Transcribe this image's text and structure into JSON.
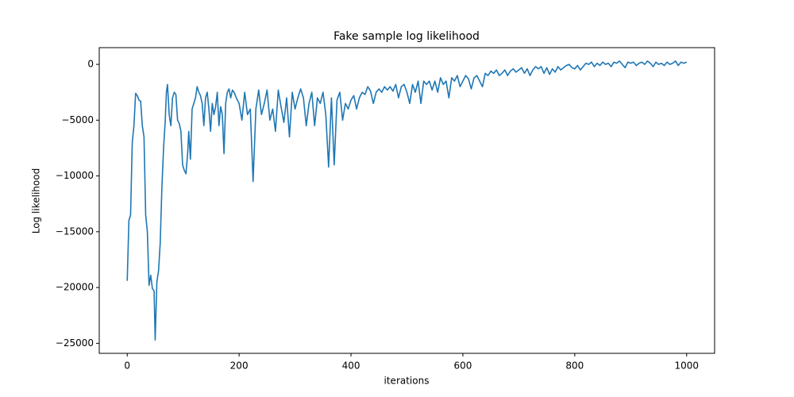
{
  "chart_data": {
    "type": "line",
    "title": "Fake sample log likelihood",
    "x_label": "iterations",
    "y_label": "Log likelihood",
    "xlim": [
      -50,
      1050
    ],
    "ylim": [
      -25900,
      1500
    ],
    "xticks": [
      0,
      200,
      400,
      600,
      800,
      1000
    ],
    "yticks": [
      {
        "value": -25000,
        "label": "−25000"
      },
      {
        "value": -20000,
        "label": "−20000"
      },
      {
        "value": -15000,
        "label": "−15000"
      },
      {
        "value": -10000,
        "label": "−10000"
      },
      {
        "value": -5000,
        "label": "−5000"
      },
      0
    ],
    "grid": false,
    "x": [
      0,
      3,
      6,
      9,
      12,
      15,
      18,
      21,
      24,
      27,
      30,
      33,
      36,
      39,
      42,
      45,
      48,
      50,
      53,
      56,
      59,
      62,
      65,
      68,
      70,
      72,
      75,
      78,
      81,
      84,
      87,
      90,
      93,
      96,
      99,
      102,
      105,
      108,
      110,
      113,
      116,
      119,
      122,
      125,
      128,
      131,
      134,
      137,
      140,
      143,
      146,
      149,
      152,
      155,
      158,
      161,
      164,
      167,
      170,
      173,
      176,
      179,
      182,
      185,
      188,
      191,
      195,
      200,
      205,
      210,
      215,
      220,
      225,
      230,
      235,
      240,
      245,
      250,
      255,
      260,
      265,
      270,
      275,
      280,
      285,
      290,
      295,
      300,
      305,
      310,
      315,
      320,
      325,
      330,
      335,
      340,
      345,
      350,
      355,
      360,
      365,
      370,
      375,
      380,
      385,
      390,
      395,
      400,
      405,
      410,
      415,
      420,
      425,
      430,
      435,
      440,
      445,
      450,
      455,
      460,
      465,
      470,
      475,
      480,
      485,
      490,
      495,
      500,
      505,
      510,
      515,
      520,
      525,
      530,
      535,
      540,
      545,
      550,
      555,
      560,
      565,
      570,
      575,
      580,
      585,
      590,
      595,
      600,
      605,
      610,
      615,
      620,
      625,
      630,
      635,
      640,
      645,
      650,
      655,
      660,
      665,
      670,
      675,
      680,
      685,
      690,
      695,
      700,
      705,
      710,
      715,
      720,
      725,
      730,
      735,
      740,
      745,
      750,
      755,
      760,
      765,
      770,
      775,
      780,
      785,
      790,
      795,
      800,
      805,
      810,
      815,
      820,
      825,
      830,
      835,
      840,
      845,
      850,
      855,
      860,
      865,
      870,
      875,
      880,
      885,
      890,
      895,
      900,
      905,
      910,
      915,
      920,
      925,
      930,
      935,
      940,
      945,
      950,
      955,
      960,
      965,
      970,
      975,
      980,
      985,
      990,
      995,
      1000
    ],
    "series": [
      {
        "name": "Log likelihood",
        "color": "#1f77b4",
        "values": [
          -19400,
          -14000,
          -13500,
          -7000,
          -5500,
          -2600,
          -2800,
          -3200,
          -3300,
          -5500,
          -6500,
          -13500,
          -15000,
          -19800,
          -18900,
          -20100,
          -20300,
          -24700,
          -19500,
          -18500,
          -16000,
          -11000,
          -7500,
          -5000,
          -2500,
          -1800,
          -4500,
          -5500,
          -3000,
          -2500,
          -2700,
          -5000,
          -5300,
          -6000,
          -9000,
          -9500,
          -9800,
          -8000,
          -6000,
          -8500,
          -4000,
          -3500,
          -3000,
          -2000,
          -2500,
          -2800,
          -3500,
          -5500,
          -3000,
          -2500,
          -4000,
          -6000,
          -3500,
          -4500,
          -3800,
          -2500,
          -5500,
          -3800,
          -4500,
          -8000,
          -3500,
          -2500,
          -2200,
          -3000,
          -2300,
          -2500,
          -3000,
          -3500,
          -5000,
          -2500,
          -4500,
          -4000,
          -10500,
          -4000,
          -2300,
          -4500,
          -3500,
          -2300,
          -5000,
          -4000,
          -6000,
          -2300,
          -3800,
          -5200,
          -3000,
          -6500,
          -2500,
          -4000,
          -3000,
          -2200,
          -3000,
          -5500,
          -3500,
          -2500,
          -5500,
          -3000,
          -3500,
          -2500,
          -4500,
          -9200,
          -3000,
          -9000,
          -3200,
          -2500,
          -5000,
          -3500,
          -4000,
          -3200,
          -2800,
          -4000,
          -3000,
          -2500,
          -2700,
          -2000,
          -2400,
          -3500,
          -2500,
          -2200,
          -2500,
          -2000,
          -2300,
          -2000,
          -2400,
          -1800,
          -3000,
          -2000,
          -1800,
          -2500,
          -3500,
          -1800,
          -2500,
          -1500,
          -3500,
          -1500,
          -1800,
          -1500,
          -2300,
          -1500,
          -2500,
          -1200,
          -1800,
          -1500,
          -3000,
          -1200,
          -1500,
          -1000,
          -2000,
          -1500,
          -1000,
          -1300,
          -2200,
          -1200,
          -1000,
          -1500,
          -2000,
          -800,
          -1000,
          -600,
          -800,
          -500,
          -1000,
          -800,
          -500,
          -1000,
          -600,
          -400,
          -700,
          -500,
          -300,
          -800,
          -400,
          -1000,
          -500,
          -200,
          -400,
          -200,
          -800,
          -300,
          -900,
          -400,
          -700,
          -200,
          -500,
          -300,
          -100,
          0,
          -300,
          -400,
          -100,
          -500,
          -200,
          100,
          0,
          200,
          -200,
          100,
          -100,
          200,
          0,
          100,
          -200,
          200,
          100,
          300,
          0,
          -300,
          200,
          100,
          200,
          -100,
          100,
          200,
          0,
          300,
          100,
          -200,
          200,
          0,
          100,
          -100,
          200,
          0,
          100,
          300,
          -100,
          200,
          100,
          200
        ]
      }
    ]
  }
}
